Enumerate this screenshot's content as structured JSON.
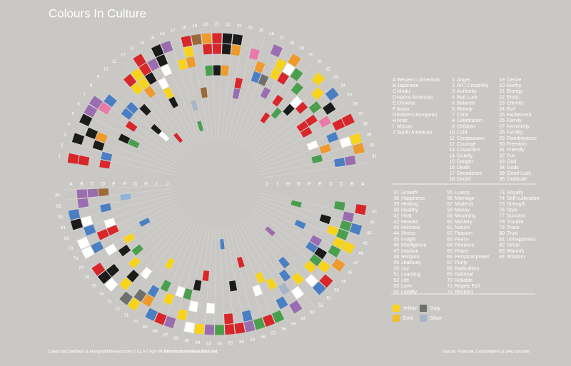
{
  "title": "Colours In Culture",
  "cultures": [
    {
      "letter": "A",
      "name": "Western / American"
    },
    {
      "letter": "B",
      "name": "Japanese"
    },
    {
      "letter": "C",
      "name": "Hindu"
    },
    {
      "letter": "D",
      "name": "Native American"
    },
    {
      "letter": "E",
      "name": "Chinese"
    },
    {
      "letter": "F",
      "name": "Asian"
    },
    {
      "letter": "G",
      "name": "Eastern European"
    },
    {
      "letter": "H",
      "name": "Arab"
    },
    {
      "letter": "I",
      "name": "African"
    },
    {
      "letter": "J",
      "name": "South American"
    }
  ],
  "topics": [
    {
      "n": 1,
      "name": "Anger"
    },
    {
      "n": 2,
      "name": "Art / Creativity"
    },
    {
      "n": 3,
      "name": "Authority"
    },
    {
      "n": 4,
      "name": "Bad Luck"
    },
    {
      "n": 5,
      "name": "Balance"
    },
    {
      "n": 6,
      "name": "Beauty"
    },
    {
      "n": 7,
      "name": "Calm"
    },
    {
      "n": 8,
      "name": "Celebration"
    },
    {
      "n": 9,
      "name": "Children"
    },
    {
      "n": 10,
      "name": "Cold"
    },
    {
      "n": 11,
      "name": "Compassion"
    },
    {
      "n": 12,
      "name": "Courage"
    },
    {
      "n": 13,
      "name": "Cowardice"
    },
    {
      "n": 14,
      "name": "Cruelty"
    },
    {
      "n": 15,
      "name": "Danger"
    },
    {
      "n": 16,
      "name": "Death"
    },
    {
      "n": 17,
      "name": "Decadence"
    },
    {
      "n": 18,
      "name": "Deceit"
    },
    {
      "n": 19,
      "name": "Desire"
    },
    {
      "n": 20,
      "name": "Earthy"
    },
    {
      "n": 21,
      "name": "Energy"
    },
    {
      "n": 22,
      "name": "Erotic"
    },
    {
      "n": 23,
      "name": "Eternity"
    },
    {
      "n": 24,
      "name": "Evil"
    },
    {
      "n": 25,
      "name": "Excitement"
    },
    {
      "n": 26,
      "name": "Family"
    },
    {
      "n": 27,
      "name": "Femininity"
    },
    {
      "n": 28,
      "name": "Fertility"
    },
    {
      "n": 29,
      "name": "Flamboyance"
    },
    {
      "n": 30,
      "name": "Freedom"
    },
    {
      "n": 31,
      "name": "Friendly"
    },
    {
      "n": 32,
      "name": "Fun"
    },
    {
      "n": 33,
      "name": "God"
    },
    {
      "n": 34,
      "name": "Gods"
    },
    {
      "n": 35,
      "name": "Good Luck"
    },
    {
      "n": 36,
      "name": "Gratitude"
    },
    {
      "n": 37,
      "name": "Growth"
    },
    {
      "n": 38,
      "name": "Happiness"
    },
    {
      "n": 39,
      "name": "Healing"
    },
    {
      "n": 40,
      "name": "Healthy"
    },
    {
      "n": 41,
      "name": "Heat"
    },
    {
      "n": 42,
      "name": "Heaven"
    },
    {
      "n": 43,
      "name": "Holiness"
    },
    {
      "n": 44,
      "name": "Illness"
    },
    {
      "n": 45,
      "name": "Insight"
    },
    {
      "n": 46,
      "name": "Intelligence"
    },
    {
      "n": 47,
      "name": "Intuition"
    },
    {
      "n": 48,
      "name": "Religion"
    },
    {
      "n": 49,
      "name": "Jealousy"
    },
    {
      "n": 50,
      "name": "Joy"
    },
    {
      "n": 51,
      "name": "Learning"
    },
    {
      "n": 52,
      "name": "Life"
    },
    {
      "n": 53,
      "name": "Love"
    },
    {
      "n": 54,
      "name": "Loyalty"
    },
    {
      "n": 55,
      "name": "Luxury"
    },
    {
      "n": 56,
      "name": "Marriage"
    },
    {
      "n": 57,
      "name": "Modesty"
    },
    {
      "n": 58,
      "name": "Money"
    },
    {
      "n": 59,
      "name": "Mourning"
    },
    {
      "n": 60,
      "name": "Mystery"
    },
    {
      "n": 61,
      "name": "Nature"
    },
    {
      "n": 62,
      "name": "Passion"
    },
    {
      "n": 63,
      "name": "Peace"
    },
    {
      "n": 64,
      "name": "Penance"
    },
    {
      "n": 65,
      "name": "Power"
    },
    {
      "n": 66,
      "name": "Personal power"
    },
    {
      "n": 67,
      "name": "Purity"
    },
    {
      "n": 68,
      "name": "Radicalism"
    },
    {
      "n": 69,
      "name": "Rational"
    },
    {
      "n": 70,
      "name": "Reliable"
    },
    {
      "n": 71,
      "name": "Repels Evil"
    },
    {
      "n": 72,
      "name": "Respect"
    },
    {
      "n": 73,
      "name": "Royalty"
    },
    {
      "n": 74,
      "name": "Self-cultivation"
    },
    {
      "n": 75,
      "name": "Strength"
    },
    {
      "n": 76,
      "name": "Style"
    },
    {
      "n": 77,
      "name": "Success"
    },
    {
      "n": 78,
      "name": "Trouble"
    },
    {
      "n": 79,
      "name": "Truce"
    },
    {
      "n": 80,
      "name": "Trust"
    },
    {
      "n": 81,
      "name": "Unhappiness"
    },
    {
      "n": 82,
      "name": "Virtue"
    },
    {
      "n": 83,
      "name": "Warmth"
    },
    {
      "n": 84,
      "name": "Wisdom"
    }
  ],
  "palette": {
    "R": "#d8262b",
    "Y": "#f7d31c",
    "G": "#f1bf2c",
    "O": "#ee9a2c",
    "B": "#4b7fc3",
    "L": "#92b3d8",
    "K": "#1b1b1b",
    "W": "#ffffff",
    "P": "#9a6db0",
    "Pk": "#e97aa8",
    "Gr": "#4a9f4f",
    "Br": "#9b6a3a",
    "Gy": "#6f6f6f",
    "Sv": "#a7b5c8"
  },
  "cells": [
    [
      1,
      0,
      "R"
    ],
    [
      1,
      1,
      "R"
    ],
    [
      1,
      3,
      "R"
    ],
    [
      2,
      3,
      "B"
    ],
    [
      3,
      0,
      "K"
    ],
    [
      3,
      2,
      "K"
    ],
    [
      4,
      1,
      "K"
    ],
    [
      4,
      2,
      "O"
    ],
    [
      5,
      0,
      "K"
    ],
    [
      5,
      4,
      "K"
    ],
    [
      5,
      5,
      "Gr"
    ],
    [
      6,
      0,
      "P"
    ],
    [
      7,
      1,
      "Pk"
    ],
    [
      7,
      0,
      "P"
    ],
    [
      7,
      4,
      "R"
    ],
    [
      8,
      1,
      "B"
    ],
    [
      8,
      3,
      "B"
    ],
    [
      9,
      3,
      "B"
    ],
    [
      9,
      6,
      "K"
    ],
    [
      9,
      7,
      "W"
    ],
    [
      10,
      4,
      "K"
    ],
    [
      11,
      2,
      "Y"
    ],
    [
      11,
      1,
      "R"
    ],
    [
      11,
      8,
      "R"
    ],
    [
      12,
      1,
      "Y"
    ],
    [
      12,
      2,
      "Y"
    ],
    [
      12,
      3,
      "O"
    ],
    [
      13,
      0,
      "R"
    ],
    [
      13,
      1,
      "R"
    ],
    [
      13,
      2,
      "K"
    ],
    [
      14,
      1,
      "P"
    ],
    [
      14,
      3,
      "W"
    ],
    [
      14,
      4,
      "Y"
    ],
    [
      14,
      5,
      "K"
    ],
    [
      15,
      0,
      "K"
    ],
    [
      15,
      1,
      "K"
    ],
    [
      15,
      2,
      "W"
    ],
    [
      16,
      0,
      "P"
    ],
    [
      17,
      2,
      "Y"
    ],
    [
      17,
      6,
      "Sv"
    ],
    [
      17,
      8,
      "Gr"
    ],
    [
      18,
      0,
      "R"
    ],
    [
      18,
      1,
      "Y"
    ],
    [
      18,
      2,
      "O"
    ],
    [
      19,
      0,
      "Br"
    ],
    [
      19,
      5,
      "Br"
    ],
    [
      20,
      0,
      "O"
    ],
    [
      20,
      1,
      "R"
    ],
    [
      20,
      3,
      "Gr"
    ],
    [
      21,
      0,
      "R"
    ],
    [
      21,
      1,
      "R"
    ],
    [
      21,
      3,
      "K"
    ],
    [
      22,
      0,
      "K"
    ],
    [
      22,
      1,
      "K"
    ],
    [
      22,
      3,
      "O"
    ],
    [
      23,
      0,
      "K"
    ],
    [
      23,
      1,
      "O"
    ],
    [
      24,
      4,
      "R"
    ],
    [
      24,
      5,
      "P"
    ],
    [
      25,
      1,
      "Pk"
    ],
    [
      26,
      2,
      "O"
    ],
    [
      26,
      3,
      "B"
    ],
    [
      27,
      0,
      "P"
    ],
    [
      27,
      3,
      "Gy"
    ],
    [
      28,
      1,
      "Y"
    ],
    [
      28,
      2,
      "Y"
    ],
    [
      28,
      4,
      "P"
    ],
    [
      29,
      0,
      "O"
    ],
    [
      29,
      1,
      "W"
    ],
    [
      29,
      2,
      "R"
    ],
    [
      30,
      1,
      "Gr"
    ],
    [
      30,
      4,
      "R"
    ],
    [
      30,
      6,
      "R"
    ],
    [
      31,
      2,
      "Gr"
    ],
    [
      31,
      5,
      "Gr"
    ],
    [
      32,
      0,
      "Y"
    ],
    [
      32,
      3,
      "W"
    ],
    [
      32,
      4,
      "K"
    ],
    [
      33,
      1,
      "Y"
    ],
    [
      33,
      3,
      "R"
    ],
    [
      34,
      0,
      "B"
    ],
    [
      34,
      2,
      "Gr"
    ],
    [
      35,
      1,
      "K"
    ],
    [
      35,
      3,
      "R"
    ],
    [
      35,
      4,
      "R"
    ],
    [
      36,
      2,
      "Pk"
    ],
    [
      36,
      4,
      "R"
    ],
    [
      37,
      0,
      "R"
    ],
    [
      37,
      1,
      "R"
    ],
    [
      38,
      2,
      "B"
    ],
    [
      38,
      4,
      "W"
    ],
    [
      39,
      0,
      "Y"
    ],
    [
      39,
      1,
      "W"
    ],
    [
      39,
      3,
      "O"
    ],
    [
      40,
      0,
      "O"
    ],
    [
      40,
      4,
      "Gr"
    ],
    [
      41,
      1,
      "P"
    ],
    [
      41,
      2,
      "B"
    ],
    [
      42,
      0,
      "R"
    ],
    [
      42,
      2,
      "Gr"
    ],
    [
      43,
      1,
      "P"
    ],
    [
      43,
      6,
      "Gr"
    ],
    [
      44,
      0,
      "B"
    ],
    [
      44,
      1,
      "Gr"
    ],
    [
      44,
      3,
      "K"
    ],
    [
      45,
      1,
      "Gr"
    ],
    [
      45,
      2,
      "Y"
    ],
    [
      46,
      0,
      "Y"
    ],
    [
      46,
      1,
      "Y"
    ],
    [
      46,
      5,
      "B"
    ],
    [
      47,
      1,
      "Gr"
    ],
    [
      47,
      3,
      "P"
    ],
    [
      48,
      0,
      "O"
    ],
    [
      48,
      2,
      "K"
    ],
    [
      48,
      3,
      "B"
    ],
    [
      49,
      1,
      "Y"
    ],
    [
      49,
      2,
      "Gr"
    ],
    [
      50,
      0,
      "R"
    ],
    [
      50,
      2,
      "Y"
    ],
    [
      50,
      7,
      "P"
    ],
    [
      51,
      0,
      "B"
    ],
    [
      51,
      1,
      "W"
    ],
    [
      52,
      2,
      "Y"
    ],
    [
      52,
      4,
      "B"
    ],
    [
      53,
      1,
      "W"
    ],
    [
      53,
      3,
      "B"
    ],
    [
      54,
      0,
      "P"
    ],
    [
      54,
      2,
      "Sv"
    ],
    [
      55,
      1,
      "B"
    ],
    [
      55,
      3,
      "Y"
    ],
    [
      56,
      0,
      "Gr"
    ],
    [
      56,
      4,
      "Y"
    ],
    [
      57,
      0,
      "R"
    ],
    [
      57,
      3,
      "W"
    ],
    [
      58,
      0,
      "Gr"
    ],
    [
      58,
      6,
      "R"
    ],
    [
      59,
      0,
      "P"
    ],
    [
      59,
      1,
      "B"
    ],
    [
      60,
      0,
      "R"
    ],
    [
      60,
      4,
      "K"
    ],
    [
      61,
      0,
      "R"
    ],
    [
      61,
      1,
      "R"
    ],
    [
      61,
      8,
      "B"
    ],
    [
      62,
      0,
      "Gr"
    ],
    [
      63,
      0,
      "P"
    ],
    [
      63,
      2,
      "W"
    ],
    [
      64,
      0,
      "Y"
    ],
    [
      64,
      5,
      "R"
    ],
    [
      65,
      0,
      "W"
    ],
    [
      65,
      2,
      "W"
    ],
    [
      65,
      4,
      "K"
    ],
    [
      66,
      1,
      "Y"
    ],
    [
      66,
      3,
      "Gr"
    ],
    [
      67,
      0,
      "P"
    ],
    [
      67,
      3,
      "W"
    ],
    [
      68,
      0,
      "R"
    ],
    [
      68,
      2,
      "Y"
    ],
    [
      69,
      0,
      "B"
    ],
    [
      69,
      3,
      "Gr"
    ],
    [
      70,
      1,
      "O"
    ],
    [
      70,
      2,
      "B"
    ],
    [
      70,
      5,
      "Y"
    ],
    [
      71,
      0,
      "Y"
    ],
    [
      71,
      1,
      "Gy"
    ],
    [
      72,
      0,
      "Gy"
    ],
    [
      72,
      3,
      "W"
    ],
    [
      73,
      1,
      "Y"
    ],
    [
      73,
      2,
      "K"
    ],
    [
      74,
      0,
      "W"
    ],
    [
      74,
      3,
      "Y"
    ],
    [
      75,
      0,
      "K"
    ],
    [
      75,
      1,
      "K"
    ],
    [
      75,
      4,
      "Gr"
    ],
    [
      76,
      0,
      "R"
    ],
    [
      76,
      3,
      "K"
    ],
    [
      77,
      2,
      "W"
    ],
    [
      77,
      4,
      "Y"
    ],
    [
      78,
      0,
      "W"
    ],
    [
      78,
      1,
      "B"
    ],
    [
      78,
      6,
      "B"
    ],
    [
      79,
      0,
      "W"
    ],
    [
      79,
      2,
      "R"
    ],
    [
      79,
      3,
      "R"
    ],
    [
      80,
      1,
      "B"
    ],
    [
      80,
      3,
      "W"
    ],
    [
      81,
      0,
      "K"
    ],
    [
      81,
      1,
      "W"
    ],
    [
      82,
      0,
      "B"
    ],
    [
      82,
      3,
      "B"
    ],
    [
      83,
      1,
      "P"
    ],
    [
      83,
      5,
      "L"
    ],
    [
      84,
      1,
      "P"
    ],
    [
      84,
      2,
      "P"
    ],
    [
      84,
      3,
      "Br"
    ]
  ],
  "legend": [
    {
      "label": "Yellow",
      "color": "#f7d31c"
    },
    {
      "label": "Gold",
      "color": "#f1bf2c"
    },
    {
      "label": "Gray",
      "color": "#6f6f6f"
    },
    {
      "label": "Silver",
      "color": "#a7b5c8"
    }
  ],
  "footer": {
    "credit": "David McCandless & AlwaysWithHonor.com // v1.0 // Apr 09 //",
    "site": "InformationIsBeautiful.net",
    "source": "source: Pantone, ColorMatters & web sources"
  }
}
